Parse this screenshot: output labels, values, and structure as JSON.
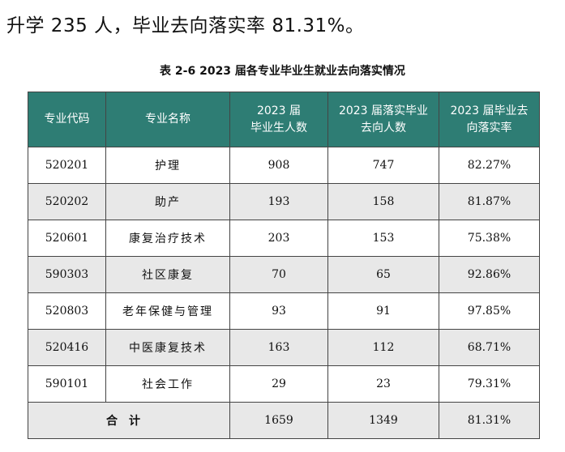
{
  "intro_text": "升学 235 人，毕业去向落实率 81.31%。",
  "table_caption": "表 2-6    2023 届各专业毕业生就业去向落实情况",
  "table": {
    "headers": [
      "专业代码",
      "专业名称",
      "2023 届\n毕业生人数",
      "2023 届落实毕业\n去向人数",
      "2023 届毕业去\n向落实率"
    ],
    "rows": [
      {
        "code": "520201",
        "name": "护理",
        "graduates": "908",
        "placed": "747",
        "rate": "82.27%"
      },
      {
        "code": "520202",
        "name": "助产",
        "graduates": "193",
        "placed": "158",
        "rate": "81.87%"
      },
      {
        "code": "520601",
        "name": "康复治疗技术",
        "graduates": "203",
        "placed": "153",
        "rate": "75.38%"
      },
      {
        "code": "590303",
        "name": "社区康复",
        "graduates": "70",
        "placed": "65",
        "rate": "92.86%"
      },
      {
        "code": "520803",
        "name": "老年保健与管理",
        "graduates": "93",
        "placed": "91",
        "rate": "97.85%"
      },
      {
        "code": "520416",
        "name": "中医康复技术",
        "graduates": "163",
        "placed": "112",
        "rate": "68.71%"
      },
      {
        "code": "590101",
        "name": "社会工作",
        "graduates": "29",
        "placed": "23",
        "rate": "79.31%"
      }
    ],
    "total": {
      "label": "合计",
      "graduates": "1659",
      "placed": "1349",
      "rate": "81.31%"
    }
  }
}
